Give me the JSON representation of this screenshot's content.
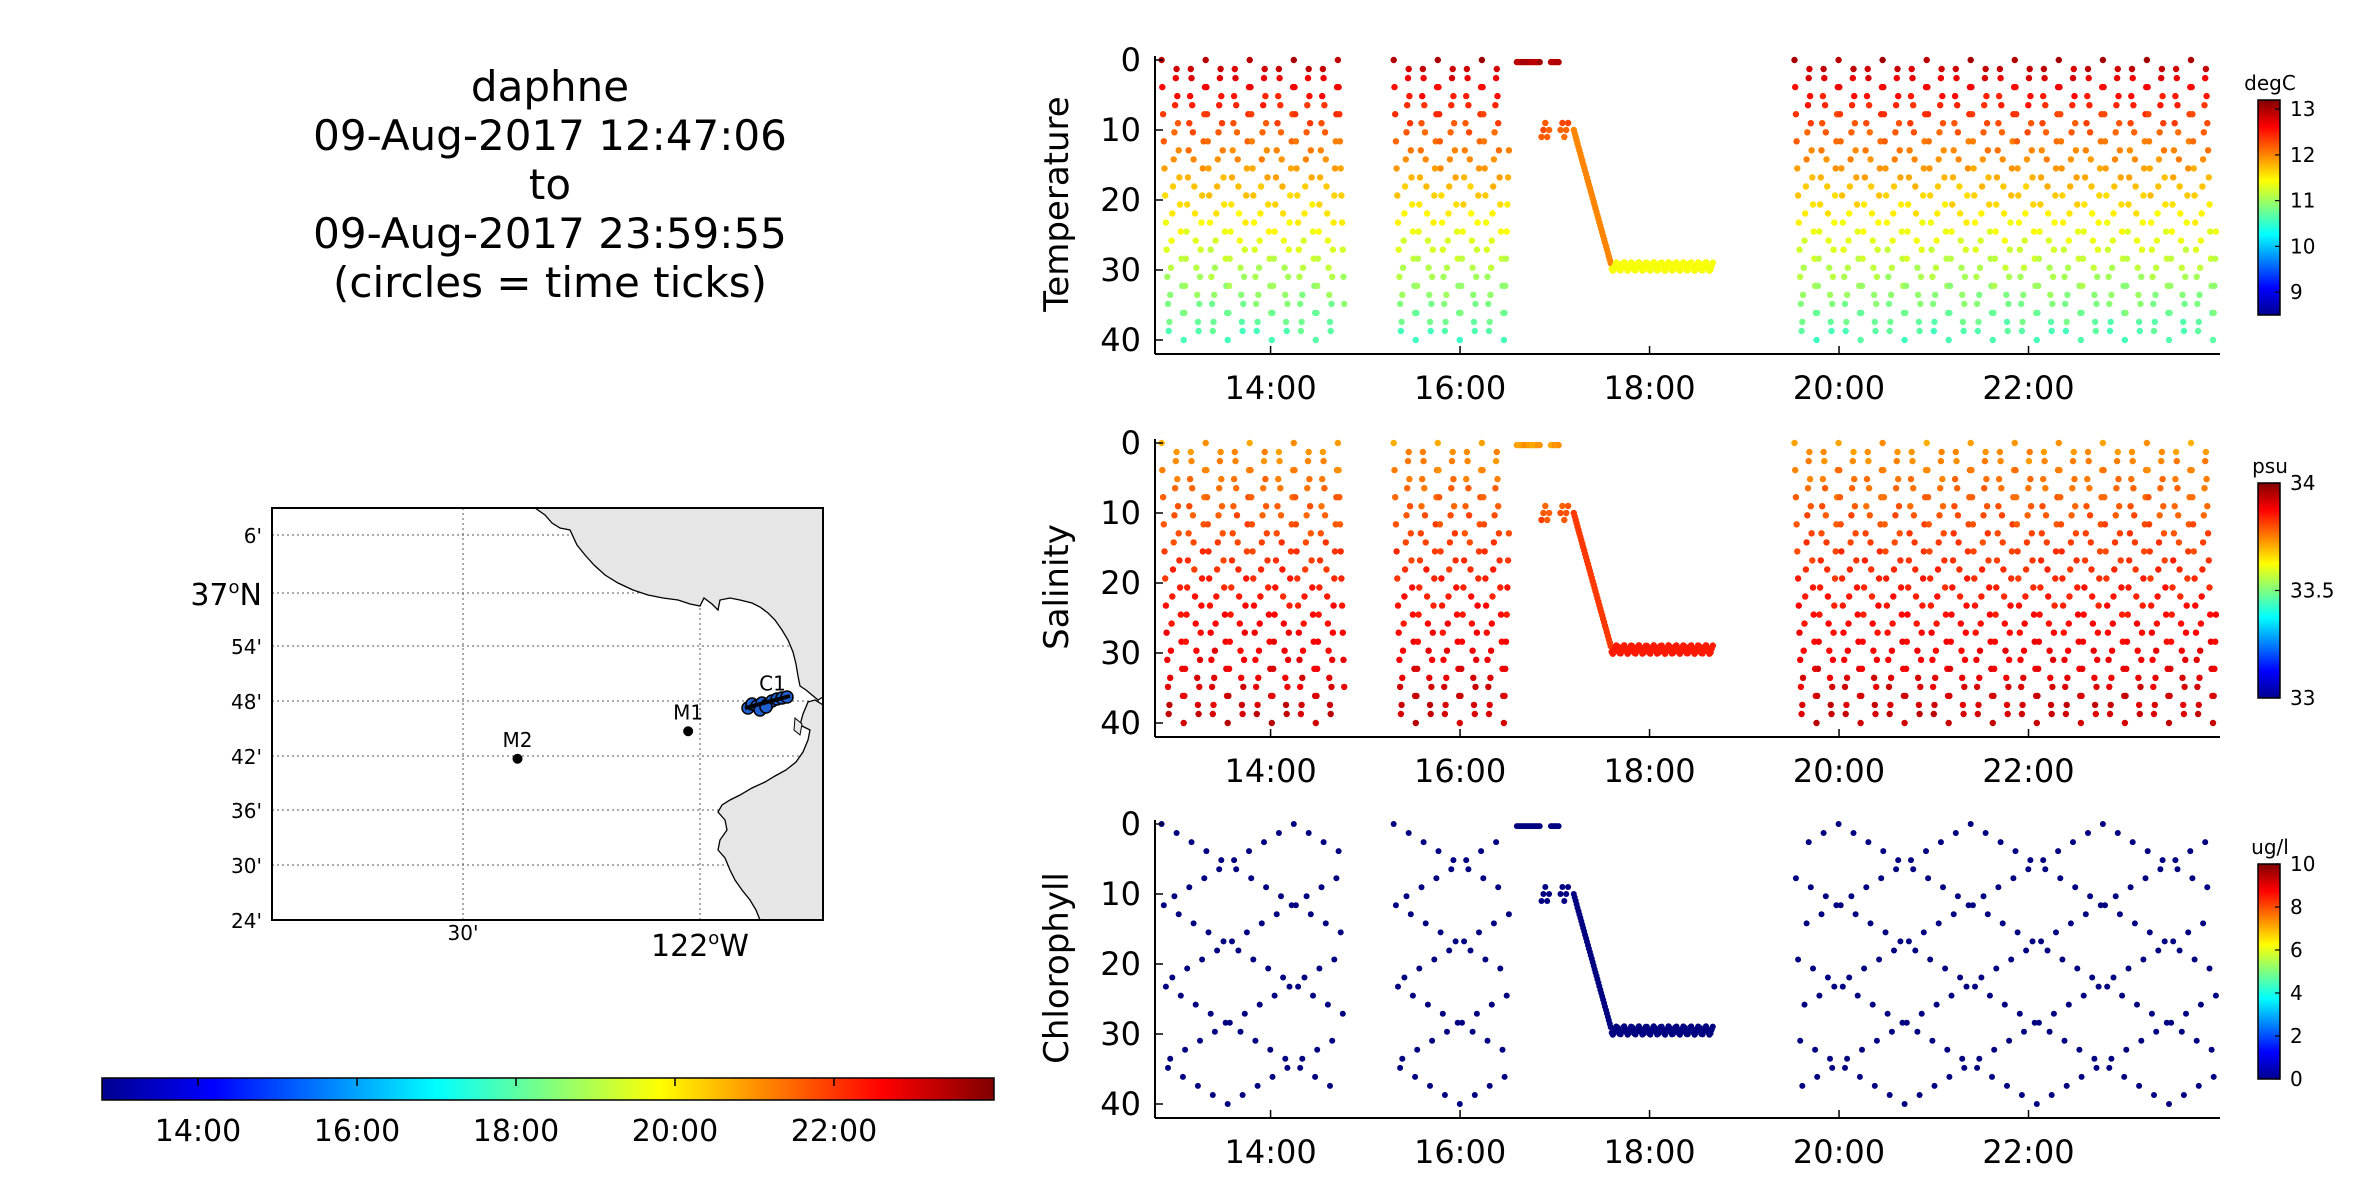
{
  "header": {
    "vehicle": "daphne",
    "start": "09-Aug-2017 12:47:06",
    "to": "to",
    "end": "09-Aug-2017 23:59:55",
    "note": "(circles = time ticks)"
  },
  "map": {
    "lat_labels": [
      "6'",
      "37",
      "54'",
      "48'",
      "42'",
      "36'",
      "30'",
      "24'"
    ],
    "lat_main_suffix": "N",
    "lon_labels": [
      "30'",
      "122",
      "W"
    ],
    "stations": [
      {
        "name": "M2",
        "lat": 36.695,
        "lon": -122.385
      },
      {
        "name": "M1",
        "lat": 36.745,
        "lon": -122.025
      },
      {
        "name": "C1",
        "lat": 36.797,
        "lon": -121.847
      }
    ],
    "time_colorbar_ticks": [
      "14:00",
      "16:00",
      "18:00",
      "20:00",
      "22:00"
    ],
    "land_color": "#e6e6e6"
  },
  "chart_data": [
    {
      "type": "scatter",
      "name": "Temperature",
      "ylabel": "Temperature",
      "unit": "degC",
      "ylim": [
        0,
        40
      ],
      "y_ticks": [
        "0",
        "10",
        "20",
        "30",
        "40"
      ],
      "x_ticks": [
        "14:00",
        "16:00",
        "18:00",
        "20:00",
        "22:00"
      ],
      "x_tick_hours": [
        14,
        16,
        18,
        20,
        22
      ],
      "xlim_hours": [
        12.78,
        24.0
      ],
      "clim": [
        8.5,
        13.2
      ],
      "cbar_ticks": [
        "9",
        "10",
        "11",
        "12",
        "13"
      ],
      "cbar_tick_values": [
        9,
        10,
        11,
        12,
        13
      ],
      "colormap": "jet",
      "surface_value": 13.0,
      "deep_value": 10.6,
      "ramp_value": 12.0,
      "bottom_value": 11.4
    },
    {
      "type": "scatter",
      "name": "Salinity",
      "ylabel": "Salinity",
      "unit": "psu",
      "ylim": [
        0,
        40
      ],
      "y_ticks": [
        "0",
        "10",
        "20",
        "30",
        "40"
      ],
      "x_ticks": [
        "14:00",
        "16:00",
        "18:00",
        "20:00",
        "22:00"
      ],
      "x_tick_hours": [
        14,
        16,
        18,
        20,
        22
      ],
      "xlim_hours": [
        12.78,
        24.0
      ],
      "clim": [
        33.0,
        34.0
      ],
      "cbar_ticks": [
        "33",
        "33.5",
        "34"
      ],
      "cbar_tick_values": [
        33.0,
        33.5,
        34.0
      ],
      "colormap": "jet",
      "surface_value": 33.72,
      "deep_value": 33.93,
      "ramp_value": 33.82,
      "bottom_value": 33.85
    },
    {
      "type": "scatter",
      "name": "Chlorophyll",
      "ylabel": "Chlorophyll",
      "unit": "ug/l",
      "ylim": [
        0,
        40
      ],
      "y_ticks": [
        "0",
        "10",
        "20",
        "30",
        "40"
      ],
      "x_ticks": [
        "14:00",
        "16:00",
        "18:00",
        "20:00",
        "22:00"
      ],
      "x_tick_hours": [
        14,
        16,
        18,
        20,
        22
      ],
      "xlim_hours": [
        12.78,
        24.0
      ],
      "clim": [
        0,
        10
      ],
      "cbar_ticks": [
        "0",
        "2",
        "4",
        "6",
        "8",
        "10"
      ],
      "cbar_tick_values": [
        0,
        2,
        4,
        6,
        8,
        10
      ],
      "colormap": "jet",
      "sparse": true
    }
  ],
  "profiles": {
    "yo_segments_hours": [
      [
        12.85,
        14.78
      ],
      [
        15.3,
        16.52
      ],
      [
        19.53,
        23.98
      ]
    ],
    "surface_transit_hours": [
      16.6,
      17.15
    ],
    "descent_hours": [
      17.2,
      17.6
    ],
    "bottom_hold_hours": [
      17.6,
      18.68
    ],
    "bottom_hold_depth": 29.5
  },
  "colors": {
    "axis": "#000000",
    "chlorophyll_points": "#000080",
    "track": "#1f5fd0"
  }
}
